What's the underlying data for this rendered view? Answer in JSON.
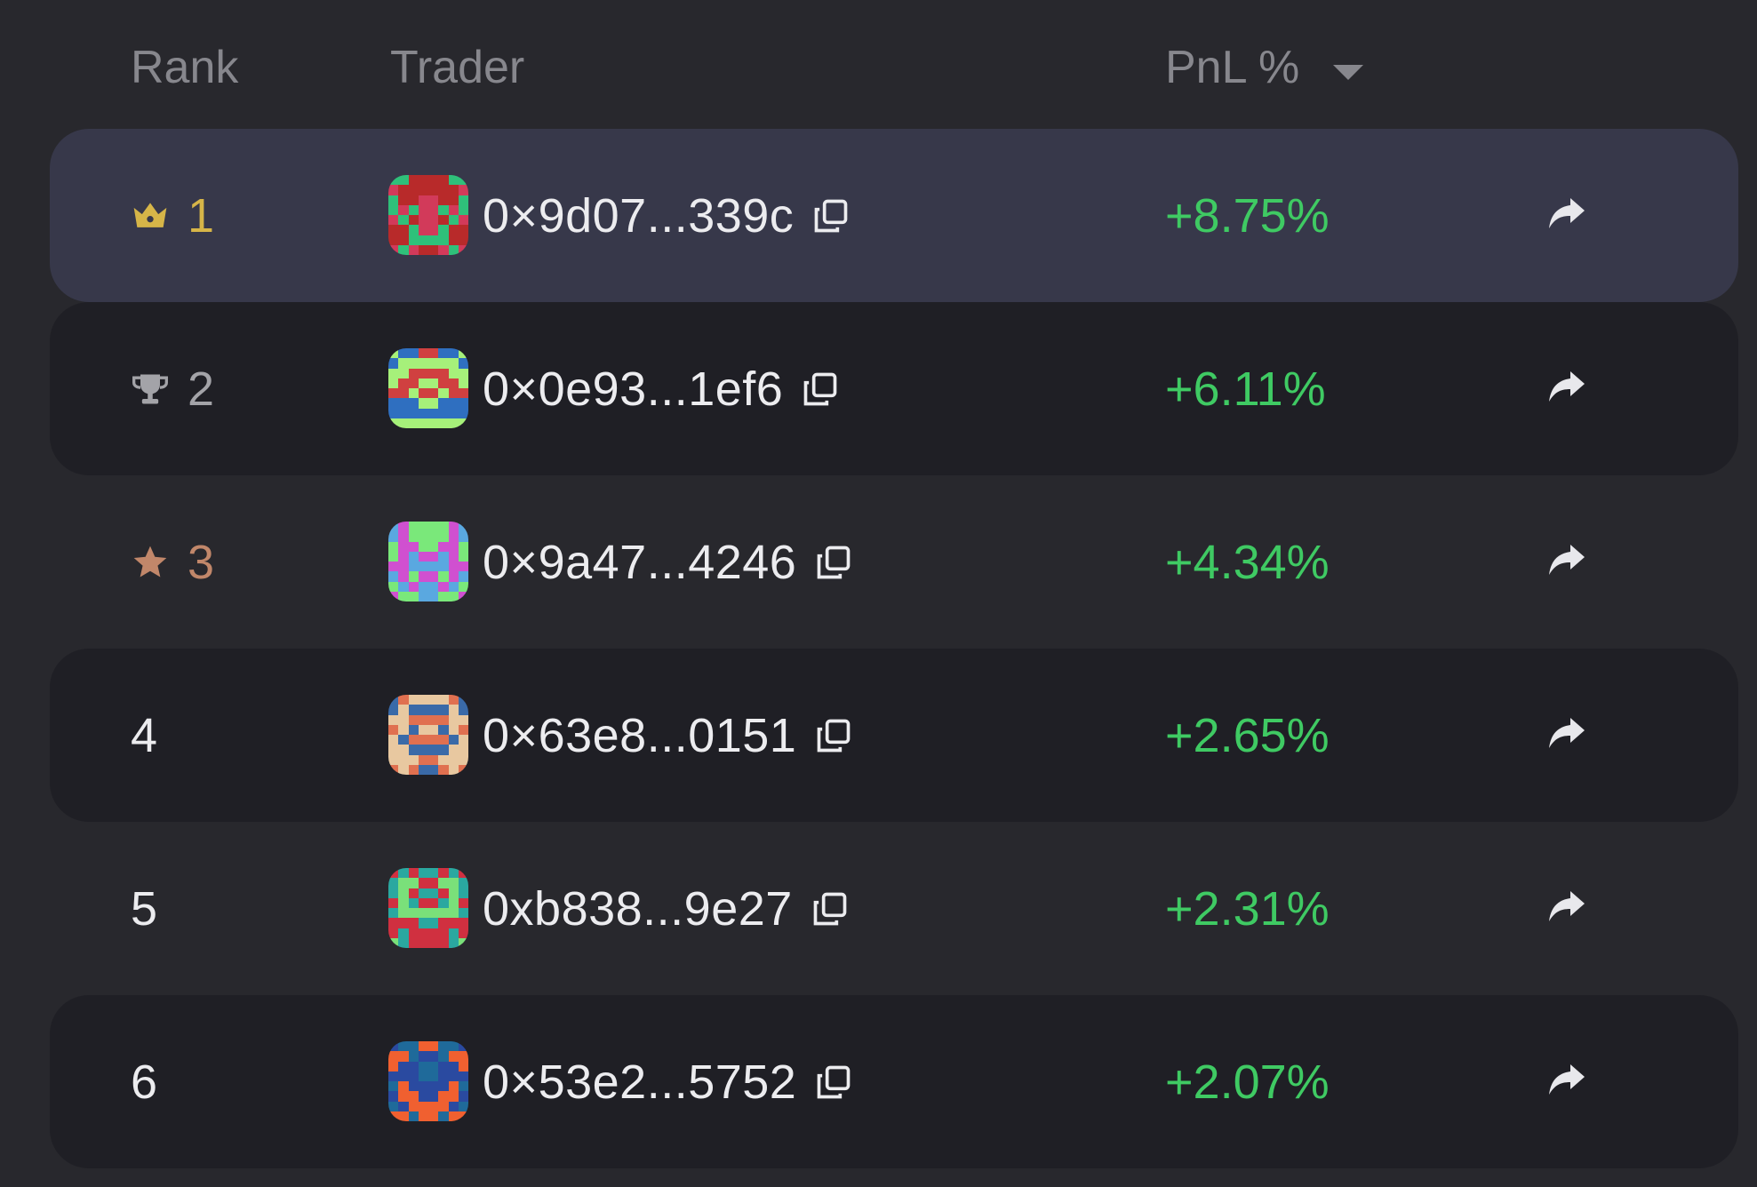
{
  "header": {
    "rank_label": "Rank",
    "trader_label": "Trader",
    "pnl_label": "PnL %",
    "sort_icon": "caret-down-icon"
  },
  "colors": {
    "background": "#28282d",
    "highlight_row": "#37384a",
    "dark_row": "#1f1f25",
    "positive": "#3fca63",
    "gold": "#d6b548",
    "silver": "#a3a3a8",
    "bronze": "#c1876a"
  },
  "rows": [
    {
      "rank": "1",
      "icon": "crown-icon",
      "address": "0×9d07...339c",
      "pnl": "+8.75%",
      "avatar_colors": [
        "#d23a5a",
        "#2fc07a",
        "#b82a2a"
      ]
    },
    {
      "rank": "2",
      "icon": "trophy-icon",
      "address": "0×0e93...1ef6",
      "pnl": "+6.11%",
      "avatar_colors": [
        "#2f6fc0",
        "#a6f07a",
        "#d04040"
      ]
    },
    {
      "rank": "3",
      "icon": "star-icon",
      "address": "0×9a47...4246",
      "pnl": "+4.34%",
      "avatar_colors": [
        "#5aa8e0",
        "#7ae87a",
        "#d050d0"
      ]
    },
    {
      "rank": "4",
      "icon": "",
      "address": "0×63e8...0151",
      "pnl": "+2.65%",
      "avatar_colors": [
        "#3a6aa8",
        "#e8c8a0",
        "#e07050"
      ]
    },
    {
      "rank": "5",
      "icon": "",
      "address": "0xb838...9e27",
      "pnl": "+2.31%",
      "avatar_colors": [
        "#7ae07a",
        "#2aa8a0",
        "#d03040"
      ]
    },
    {
      "rank": "6",
      "icon": "",
      "address": "0×53e2...5752",
      "pnl": "+2.07%",
      "avatar_colors": [
        "#1f6a9a",
        "#f06030",
        "#2a4aa0"
      ]
    }
  ]
}
